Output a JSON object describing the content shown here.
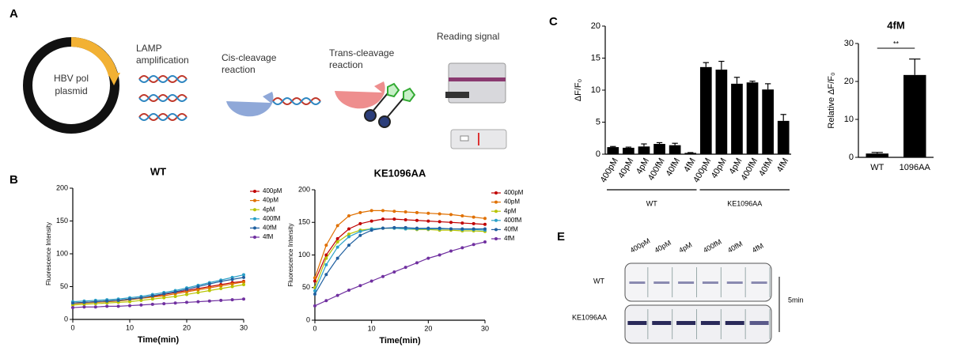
{
  "panel_labels": [
    "A",
    "B",
    "C",
    "E"
  ],
  "diagram": {
    "plasmid": [
      "HBV pol",
      "plasmid"
    ],
    "lamp": [
      "LAMP",
      "amplification"
    ],
    "cis": [
      "Cis-cleavage",
      "reaction"
    ],
    "trans": [
      "Trans-cleavage",
      "reaction"
    ],
    "reading": "Reading signal"
  },
  "gel": {
    "lanes": [
      "400pM",
      "40pM",
      "4pM",
      "400fM",
      "40fM",
      "4fM"
    ],
    "rows": [
      "WT",
      "KE1096AA"
    ],
    "time": "5min"
  },
  "chart_data": [
    {
      "type": "line",
      "title": "WT",
      "x_label": "Time(min)",
      "y_label": "Fluorescence Intensity",
      "x": [
        0,
        2,
        4,
        6,
        8,
        10,
        12,
        14,
        16,
        18,
        20,
        22,
        24,
        26,
        28,
        30
      ],
      "xlim": [
        0,
        30
      ],
      "xticks": [
        0,
        10,
        20,
        30
      ],
      "ylim": [
        0,
        200
      ],
      "yticks": [
        0,
        50,
        100,
        150,
        200
      ],
      "series": [
        {
          "name": "400pM",
          "color": "#c00000",
          "values": [
            25,
            26,
            27,
            28,
            29,
            31,
            33,
            35,
            38,
            41,
            44,
            47,
            50,
            53,
            56,
            58
          ]
        },
        {
          "name": "40pM",
          "color": "#e07000",
          "values": [
            24,
            25,
            26,
            27,
            28,
            30,
            32,
            34,
            36,
            39,
            42,
            45,
            48,
            51,
            54,
            57
          ]
        },
        {
          "name": "4pM",
          "color": "#b8c400",
          "values": [
            22,
            23,
            24,
            25,
            26,
            27,
            29,
            31,
            33,
            35,
            38,
            41,
            44,
            47,
            50,
            53
          ]
        },
        {
          "name": "400fM",
          "color": "#2aa0c8",
          "values": [
            27,
            28,
            29,
            30,
            31,
            33,
            35,
            38,
            41,
            44,
            48,
            52,
            56,
            60,
            64,
            68
          ]
        },
        {
          "name": "40fM",
          "color": "#1f5f9f",
          "values": [
            25,
            26,
            27,
            28,
            29,
            31,
            33,
            36,
            39,
            42,
            46,
            50,
            54,
            58,
            61,
            64
          ]
        },
        {
          "name": "4fM",
          "color": "#7030a0",
          "values": [
            18,
            19,
            19,
            20,
            20,
            21,
            22,
            23,
            24,
            25,
            26,
            27,
            28,
            29,
            30,
            31
          ]
        }
      ]
    },
    {
      "type": "line",
      "title": "KE1096AA",
      "x_label": "Time(min)",
      "y_label": "Fluorescence Intensity",
      "x": [
        0,
        2,
        4,
        6,
        8,
        10,
        12,
        14,
        16,
        18,
        20,
        22,
        24,
        26,
        28,
        30
      ],
      "xlim": [
        0,
        30
      ],
      "xticks": [
        0,
        10,
        20,
        30
      ],
      "ylim": [
        0,
        200
      ],
      "yticks": [
        0,
        50,
        100,
        150,
        200
      ],
      "series": [
        {
          "name": "400pM",
          "color": "#c00000",
          "values": [
            60,
            100,
            125,
            140,
            148,
            152,
            155,
            155,
            154,
            153,
            152,
            151,
            150,
            149,
            148,
            147
          ]
        },
        {
          "name": "40pM",
          "color": "#e07000",
          "values": [
            65,
            115,
            145,
            160,
            165,
            168,
            168,
            167,
            166,
            165,
            164,
            163,
            162,
            160,
            158,
            156
          ]
        },
        {
          "name": "4pM",
          "color": "#b8c400",
          "values": [
            50,
            95,
            120,
            132,
            138,
            140,
            141,
            141,
            140,
            139,
            139,
            138,
            138,
            137,
            137,
            136
          ]
        },
        {
          "name": "400fM",
          "color": "#2aa0c8",
          "values": [
            45,
            85,
            112,
            128,
            136,
            140,
            141,
            141,
            140,
            140,
            140,
            140,
            140,
            139,
            139,
            138
          ]
        },
        {
          "name": "40fM",
          "color": "#1f5f9f",
          "values": [
            40,
            70,
            95,
            115,
            130,
            138,
            141,
            142,
            142,
            141,
            141,
            141,
            140,
            140,
            140,
            140
          ]
        },
        {
          "name": "4fM",
          "color": "#7030a0",
          "values": [
            22,
            30,
            38,
            46,
            53,
            60,
            67,
            74,
            81,
            88,
            95,
            100,
            106,
            111,
            116,
            120
          ]
        }
      ]
    },
    {
      "type": "bar",
      "y_label": "ΔF/F₀",
      "color": "#000000",
      "categories": [
        "400pM",
        "40pM",
        "4pM",
        "400fM",
        "40fM",
        "4fM",
        "400pM",
        "40pM",
        "4pM",
        "400fM",
        "40fM",
        "4fM"
      ],
      "values": [
        1.1,
        1.0,
        1.2,
        1.6,
        1.4,
        0.2,
        13.6,
        13.2,
        11.0,
        11.2,
        10.1,
        5.2
      ],
      "errors": [
        0.1,
        0.1,
        0.4,
        0.2,
        0.3,
        0.05,
        0.7,
        1.3,
        1.0,
        0.2,
        0.9,
        1.0
      ],
      "groups": [
        "WT",
        "KE1096AA"
      ],
      "ylim": [
        0,
        20
      ],
      "yticks": [
        0,
        5,
        10,
        15,
        20
      ]
    },
    {
      "type": "bar",
      "title": "4fM",
      "y_label": "Relative ΔF/F₀",
      "color": "#000000",
      "categories": [
        "WT",
        "1096AA"
      ],
      "values": [
        1.0,
        21.7
      ],
      "errors": [
        0.3,
        4.2
      ],
      "annotation": "**",
      "ylim": [
        0,
        30
      ],
      "yticks": [
        0,
        10,
        20,
        30
      ]
    }
  ]
}
